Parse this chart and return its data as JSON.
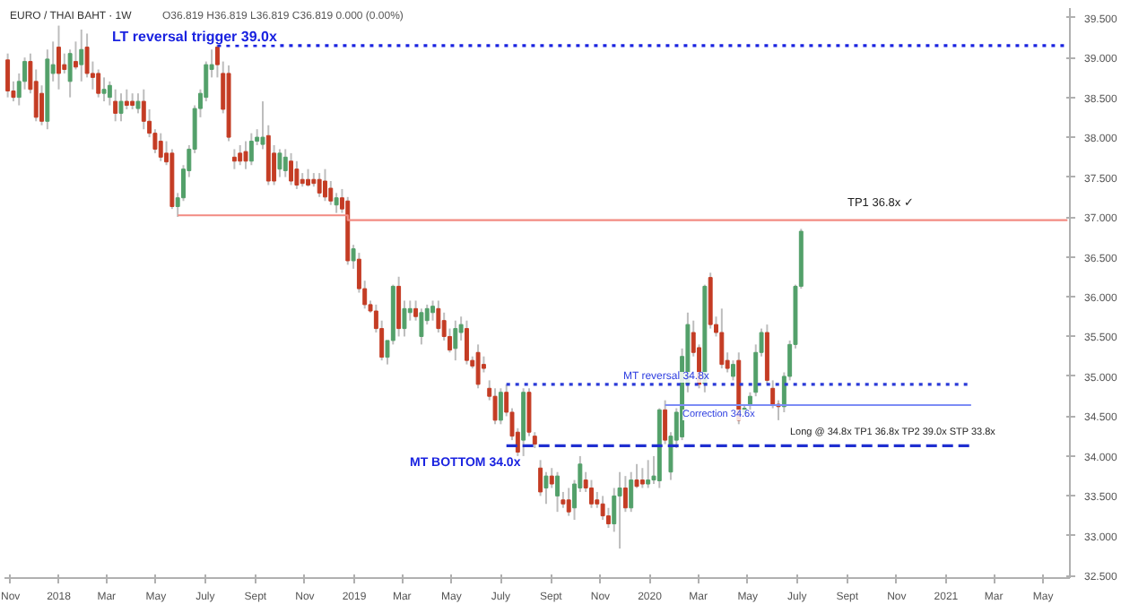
{
  "chart_data": {
    "type": "candlestick",
    "title": "EURO / THAI BAHT · 1W",
    "subtitle": "O36.819 H36.819 L36.819 C36.819 0.000 (0.00%)",
    "x": [
      "2017-10-30",
      "2017-11-06",
      "2017-11-13",
      "2017-11-20",
      "2017-11-27",
      "2017-12-04",
      "2017-12-11",
      "2017-12-18",
      "2017-12-25",
      "2018-01-01",
      "2018-01-08",
      "2018-01-15",
      "2018-01-22",
      "2018-01-29",
      "2018-02-05",
      "2018-02-12",
      "2018-02-19",
      "2018-02-26",
      "2018-03-05",
      "2018-03-12",
      "2018-03-19",
      "2018-03-26",
      "2018-04-02",
      "2018-04-09",
      "2018-04-16",
      "2018-04-23",
      "2018-04-30",
      "2018-05-07",
      "2018-05-14",
      "2018-05-21",
      "2018-05-28",
      "2018-06-04",
      "2018-06-11",
      "2018-06-18",
      "2018-06-25",
      "2018-07-02",
      "2018-07-09",
      "2018-07-16",
      "2018-07-23",
      "2018-07-30",
      "2018-08-06",
      "2018-08-13",
      "2018-08-20",
      "2018-08-27",
      "2018-09-03",
      "2018-09-10",
      "2018-09-17",
      "2018-09-24",
      "2018-10-01",
      "2018-10-08",
      "2018-10-15",
      "2018-10-22",
      "2018-10-29",
      "2018-11-05",
      "2018-11-12",
      "2018-11-19",
      "2018-11-26",
      "2018-12-03",
      "2018-12-10",
      "2018-12-17",
      "2018-12-24",
      "2018-12-31",
      "2019-01-07",
      "2019-01-14",
      "2019-01-21",
      "2019-01-28",
      "2019-02-04",
      "2019-02-11",
      "2019-02-18",
      "2019-02-25",
      "2019-03-04",
      "2019-03-11",
      "2019-03-18",
      "2019-03-25",
      "2019-04-01",
      "2019-04-08",
      "2019-04-15",
      "2019-04-22",
      "2019-04-29",
      "2019-05-06",
      "2019-05-13",
      "2019-05-20",
      "2019-05-27",
      "2019-06-03",
      "2019-06-10",
      "2019-06-17",
      "2019-06-24",
      "2019-07-01",
      "2019-07-08",
      "2019-07-15",
      "2019-07-22",
      "2019-07-29",
      "2019-08-05",
      "2019-08-12",
      "2019-08-19",
      "2019-08-26",
      "2019-09-02",
      "2019-09-09",
      "2019-09-16",
      "2019-09-23",
      "2019-09-30",
      "2019-10-07",
      "2019-10-14",
      "2019-10-21",
      "2019-10-28",
      "2019-11-04",
      "2019-11-11",
      "2019-11-18",
      "2019-11-25",
      "2019-12-02",
      "2019-12-09",
      "2019-12-16",
      "2019-12-23",
      "2019-12-30",
      "2020-01-06",
      "2020-01-13",
      "2020-01-20",
      "2020-01-27",
      "2020-02-03",
      "2020-02-10",
      "2020-02-17",
      "2020-02-24",
      "2020-03-02",
      "2020-03-09",
      "2020-03-16",
      "2020-03-23",
      "2020-03-30",
      "2020-04-06",
      "2020-04-13",
      "2020-04-20",
      "2020-04-27",
      "2020-05-04",
      "2020-05-11",
      "2020-05-18",
      "2020-05-25",
      "2020-06-01",
      "2020-06-08",
      "2020-06-15",
      "2020-06-22",
      "2020-06-29",
      "2020-07-06"
    ],
    "ohlc": [
      [
        38.97,
        39.05,
        38.5,
        38.58
      ],
      [
        38.58,
        38.7,
        38.45,
        38.5
      ],
      [
        38.5,
        38.8,
        38.4,
        38.7
      ],
      [
        38.7,
        39.0,
        38.6,
        38.95
      ],
      [
        38.95,
        39.05,
        38.55,
        38.6
      ],
      [
        38.7,
        38.85,
        38.2,
        38.25
      ],
      [
        38.55,
        38.65,
        38.15,
        38.2
      ],
      [
        38.2,
        39.1,
        38.1,
        38.98
      ],
      [
        38.8,
        39.2,
        38.7,
        38.91
      ],
      [
        39.13,
        39.4,
        38.6,
        38.8
      ],
      [
        38.91,
        39.05,
        38.8,
        38.85
      ],
      [
        38.7,
        39.1,
        38.5,
        39.05
      ],
      [
        38.95,
        39.2,
        38.85,
        38.88
      ],
      [
        38.91,
        39.35,
        38.7,
        39.1
      ],
      [
        39.13,
        39.3,
        38.75,
        38.8
      ],
      [
        38.8,
        38.95,
        38.6,
        38.75
      ],
      [
        38.8,
        38.85,
        38.5,
        38.55
      ],
      [
        38.55,
        38.75,
        38.45,
        38.6
      ],
      [
        38.5,
        38.7,
        38.4,
        38.65
      ],
      [
        38.45,
        38.6,
        38.2,
        38.3
      ],
      [
        38.3,
        38.55,
        38.2,
        38.45
      ],
      [
        38.45,
        38.6,
        38.35,
        38.4
      ],
      [
        38.45,
        38.55,
        38.35,
        38.4
      ],
      [
        38.36,
        38.55,
        38.3,
        38.45
      ],
      [
        38.45,
        38.6,
        38.1,
        38.2
      ],
      [
        38.2,
        38.35,
        38.0,
        38.05
      ],
      [
        38.05,
        38.1,
        37.8,
        37.85
      ],
      [
        37.95,
        38.05,
        37.7,
        37.75
      ],
      [
        37.8,
        37.95,
        37.65,
        37.69
      ],
      [
        37.8,
        37.85,
        37.1,
        37.13
      ],
      [
        37.13,
        37.3,
        37.0,
        37.24
      ],
      [
        37.24,
        37.65,
        37.2,
        37.6
      ],
      [
        37.58,
        37.9,
        37.5,
        37.85
      ],
      [
        37.85,
        38.4,
        37.8,
        38.36
      ],
      [
        38.36,
        38.6,
        38.25,
        38.55
      ],
      [
        38.5,
        38.95,
        38.45,
        38.91
      ],
      [
        38.85,
        39.1,
        38.75,
        38.91
      ],
      [
        39.13,
        39.2,
        38.75,
        38.91
      ],
      [
        38.8,
        38.95,
        38.3,
        38.35
      ],
      [
        38.8,
        38.9,
        37.95,
        38.0
      ],
      [
        37.75,
        37.85,
        37.6,
        37.7
      ],
      [
        37.8,
        37.9,
        37.65,
        37.7
      ],
      [
        37.82,
        37.95,
        37.6,
        37.7
      ],
      [
        37.7,
        38.05,
        37.65,
        37.95
      ],
      [
        37.95,
        38.1,
        37.9,
        38.0
      ],
      [
        37.91,
        38.45,
        37.85,
        38.0
      ],
      [
        38.02,
        38.15,
        37.4,
        37.45
      ],
      [
        37.8,
        37.9,
        37.4,
        37.45
      ],
      [
        37.6,
        37.85,
        37.5,
        37.8
      ],
      [
        37.58,
        37.85,
        37.5,
        37.75
      ],
      [
        37.7,
        37.8,
        37.4,
        37.45
      ],
      [
        37.6,
        37.7,
        37.35,
        37.4
      ],
      [
        37.47,
        37.55,
        37.38,
        37.42
      ],
      [
        37.47,
        37.6,
        37.38,
        37.4
      ],
      [
        37.47,
        37.55,
        37.38,
        37.42
      ],
      [
        37.47,
        37.55,
        37.25,
        37.3
      ],
      [
        37.45,
        37.6,
        37.2,
        37.25
      ],
      [
        37.36,
        37.45,
        37.15,
        37.2
      ],
      [
        37.15,
        37.3,
        37.05,
        37.24
      ],
      [
        37.24,
        37.35,
        37.05,
        37.1
      ],
      [
        37.2,
        37.25,
        36.4,
        36.45
      ],
      [
        36.45,
        36.65,
        36.35,
        36.6
      ],
      [
        36.47,
        36.55,
        36.05,
        36.1
      ],
      [
        36.1,
        36.2,
        35.85,
        35.9
      ],
      [
        35.9,
        35.95,
        35.8,
        35.82
      ],
      [
        35.82,
        35.9,
        35.55,
        35.6
      ],
      [
        35.6,
        35.7,
        35.2,
        35.24
      ],
      [
        35.24,
        35.45,
        35.15,
        35.45
      ],
      [
        35.45,
        36.15,
        35.4,
        36.13
      ],
      [
        36.13,
        36.25,
        35.5,
        35.6
      ],
      [
        35.6,
        35.95,
        35.5,
        35.85
      ],
      [
        35.8,
        35.95,
        35.7,
        35.85
      ],
      [
        35.85,
        35.95,
        35.7,
        35.75
      ],
      [
        35.5,
        35.85,
        35.4,
        35.8
      ],
      [
        35.7,
        35.9,
        35.65,
        35.85
      ],
      [
        35.8,
        35.95,
        35.7,
        35.88
      ],
      [
        35.85,
        35.95,
        35.55,
        35.6
      ],
      [
        35.7,
        35.8,
        35.45,
        35.5
      ],
      [
        35.5,
        35.6,
        35.3,
        35.33
      ],
      [
        35.35,
        35.7,
        35.2,
        35.6
      ],
      [
        35.55,
        35.75,
        35.45,
        35.65
      ],
      [
        35.6,
        35.7,
        35.15,
        35.2
      ],
      [
        35.2,
        35.25,
        35.1,
        35.13
      ],
      [
        35.3,
        35.4,
        34.85,
        34.9
      ],
      [
        35.15,
        35.25,
        35.05,
        35.1
      ],
      [
        34.85,
        34.95,
        34.7,
        34.75
      ],
      [
        34.75,
        34.85,
        34.4,
        34.45
      ],
      [
        34.45,
        34.85,
        34.4,
        34.8
      ],
      [
        34.8,
        34.9,
        34.5,
        34.55
      ],
      [
        34.55,
        34.6,
        34.2,
        34.25
      ],
      [
        34.3,
        34.35,
        34.0,
        34.05
      ],
      [
        34.2,
        34.85,
        34.0,
        34.8
      ],
      [
        34.8,
        34.85,
        34.25,
        34.3
      ],
      [
        34.25,
        34.3,
        34.1,
        34.15
      ],
      [
        33.85,
        33.95,
        33.5,
        33.55
      ],
      [
        33.6,
        33.8,
        33.4,
        33.75
      ],
      [
        33.75,
        33.85,
        33.6,
        33.65
      ],
      [
        33.5,
        33.8,
        33.3,
        33.75
      ],
      [
        33.45,
        33.55,
        33.35,
        33.4
      ],
      [
        33.45,
        33.6,
        33.25,
        33.3
      ],
      [
        33.35,
        33.7,
        33.2,
        33.65
      ],
      [
        33.6,
        34.0,
        33.55,
        33.9
      ],
      [
        33.7,
        33.8,
        33.55,
        33.6
      ],
      [
        33.6,
        33.7,
        33.35,
        33.4
      ],
      [
        33.45,
        33.55,
        33.35,
        33.4
      ],
      [
        33.4,
        33.5,
        33.2,
        33.25
      ],
      [
        33.25,
        33.35,
        33.1,
        33.15
      ],
      [
        33.15,
        33.6,
        33.05,
        33.5
      ],
      [
        33.5,
        33.8,
        32.84,
        33.6
      ],
      [
        33.6,
        33.75,
        33.3,
        33.35
      ],
      [
        33.35,
        33.8,
        33.3,
        33.7
      ],
      [
        33.7,
        33.9,
        33.6,
        33.62
      ],
      [
        33.7,
        33.85,
        33.6,
        33.65
      ],
      [
        33.65,
        33.95,
        33.6,
        33.7
      ],
      [
        33.7,
        34.0,
        33.65,
        33.75
      ],
      [
        33.69,
        34.6,
        33.6,
        34.58
      ],
      [
        34.58,
        34.7,
        34.15,
        34.2
      ],
      [
        33.8,
        34.3,
        33.7,
        34.25
      ],
      [
        34.2,
        34.6,
        34.1,
        34.55
      ],
      [
        34.24,
        35.35,
        34.2,
        35.25
      ],
      [
        34.9,
        35.8,
        34.8,
        35.65
      ],
      [
        35.55,
        35.7,
        35.25,
        35.3
      ],
      [
        35.36,
        35.4,
        34.85,
        34.9
      ],
      [
        34.91,
        36.15,
        34.8,
        36.13
      ],
      [
        36.24,
        36.3,
        35.6,
        35.65
      ],
      [
        35.65,
        35.75,
        35.5,
        35.55
      ],
      [
        35.55,
        35.85,
        35.1,
        35.15
      ],
      [
        35.2,
        35.3,
        35.05,
        35.1
      ],
      [
        35.0,
        35.2,
        34.95,
        35.15
      ],
      [
        35.2,
        35.3,
        34.4,
        34.45
      ],
      [
        34.55,
        34.65,
        34.5,
        34.6
      ],
      [
        34.65,
        34.8,
        34.55,
        34.75
      ],
      [
        34.8,
        35.4,
        34.75,
        35.3
      ],
      [
        35.3,
        35.6,
        35.25,
        35.55
      ],
      [
        35.55,
        35.65,
        34.9,
        34.95
      ],
      [
        34.85,
        34.95,
        34.6,
        34.65
      ],
      [
        34.65,
        34.7,
        34.45,
        34.62
      ],
      [
        34.62,
        35.05,
        34.55,
        35.0
      ],
      [
        35.0,
        35.45,
        34.95,
        35.4
      ],
      [
        35.4,
        36.15,
        35.35,
        36.13
      ],
      [
        36.13,
        36.85,
        36.1,
        36.82
      ]
    ],
    "series": [
      {
        "type": "line",
        "color": "#1a23e0",
        "line_style": "dotted",
        "x": [
          "2018-07-16",
          "2021-05-31"
        ],
        "values": [
          39.15,
          39.15
        ]
      },
      {
        "type": "line",
        "color": "#f28b82",
        "line_style": "solid",
        "x": [
          "2018-05-28",
          "2018-12-24",
          "2018-12-24",
          "2021-05-31"
        ],
        "values": [
          37.02,
          37.02,
          36.96,
          36.96
        ]
      },
      {
        "type": "line",
        "color": "#2b3bd8",
        "line_style": "dotted",
        "x": [
          "2019-07-08",
          "2021-02-01"
        ],
        "values": [
          34.9,
          34.9
        ]
      },
      {
        "type": "line",
        "color": "#1f2fd0",
        "line_style": "dashed",
        "x": [
          "2019-07-08",
          "2021-02-01"
        ],
        "values": [
          34.13,
          34.13
        ]
      },
      {
        "type": "line",
        "color": "#7c8cf5",
        "line_style": "solid",
        "x": [
          "2020-01-20",
          "2021-02-01"
        ],
        "values": [
          34.64,
          34.64
        ]
      }
    ],
    "annotations": [
      "LT reversal trigger 39.0x",
      "MT reversal 34.8x",
      "MT BOTTOM 34.0x",
      "Correction 34.6x",
      "Long @ 34.8x TP1 36.8x TP2 39.0x STP 33.8x",
      "TP1 36.8x ✓"
    ],
    "xlim": [
      "2017-10-26",
      "2021-06-03"
    ],
    "xticks": [
      {
        "value": "2017-11-01",
        "label": "Nov"
      },
      {
        "value": "2018-01-01",
        "label": "2018"
      },
      {
        "value": "2018-03-01",
        "label": "Mar"
      },
      {
        "value": "2018-05-01",
        "label": "May"
      },
      {
        "value": "2018-07-01",
        "label": "July"
      },
      {
        "value": "2018-09-01",
        "label": "Sept"
      },
      {
        "value": "2018-11-01",
        "label": "Nov"
      },
      {
        "value": "2019-01-01",
        "label": "2019"
      },
      {
        "value": "2019-03-01",
        "label": "Mar"
      },
      {
        "value": "2019-05-01",
        "label": "May"
      },
      {
        "value": "2019-07-01",
        "label": "July"
      },
      {
        "value": "2019-09-01",
        "label": "Sept"
      },
      {
        "value": "2019-11-01",
        "label": "Nov"
      },
      {
        "value": "2020-01-01",
        "label": "2020"
      },
      {
        "value": "2020-03-01",
        "label": "Mar"
      },
      {
        "value": "2020-05-01",
        "label": "May"
      },
      {
        "value": "2020-07-01",
        "label": "July"
      },
      {
        "value": "2020-09-01",
        "label": "Sept"
      },
      {
        "value": "2020-11-01",
        "label": "Nov"
      },
      {
        "value": "2021-01-01",
        "label": "2021"
      },
      {
        "value": "2021-03-01",
        "label": "Mar"
      },
      {
        "value": "2021-05-01",
        "label": "May"
      }
    ],
    "ylim": [
      32.47,
      39.62
    ],
    "yticks": [
      {
        "value": 32.5,
        "label": "32.500"
      },
      {
        "value": 33.0,
        "label": "33.000"
      },
      {
        "value": 33.5,
        "label": "33.500"
      },
      {
        "value": 34.0,
        "label": "34.000"
      },
      {
        "value": 34.5,
        "label": "34.500"
      },
      {
        "value": 35.0,
        "label": "35.000"
      },
      {
        "value": 35.5,
        "label": "35.500"
      },
      {
        "value": 36.0,
        "label": "36.000"
      },
      {
        "value": 36.5,
        "label": "36.500"
      },
      {
        "value": 37.0,
        "label": "37.000"
      },
      {
        "value": 37.5,
        "label": "37.500"
      },
      {
        "value": 38.0,
        "label": "38.000"
      },
      {
        "value": 38.5,
        "label": "38.500"
      },
      {
        "value": 39.0,
        "label": "39.000"
      },
      {
        "value": 39.5,
        "label": "39.500"
      }
    ]
  }
}
